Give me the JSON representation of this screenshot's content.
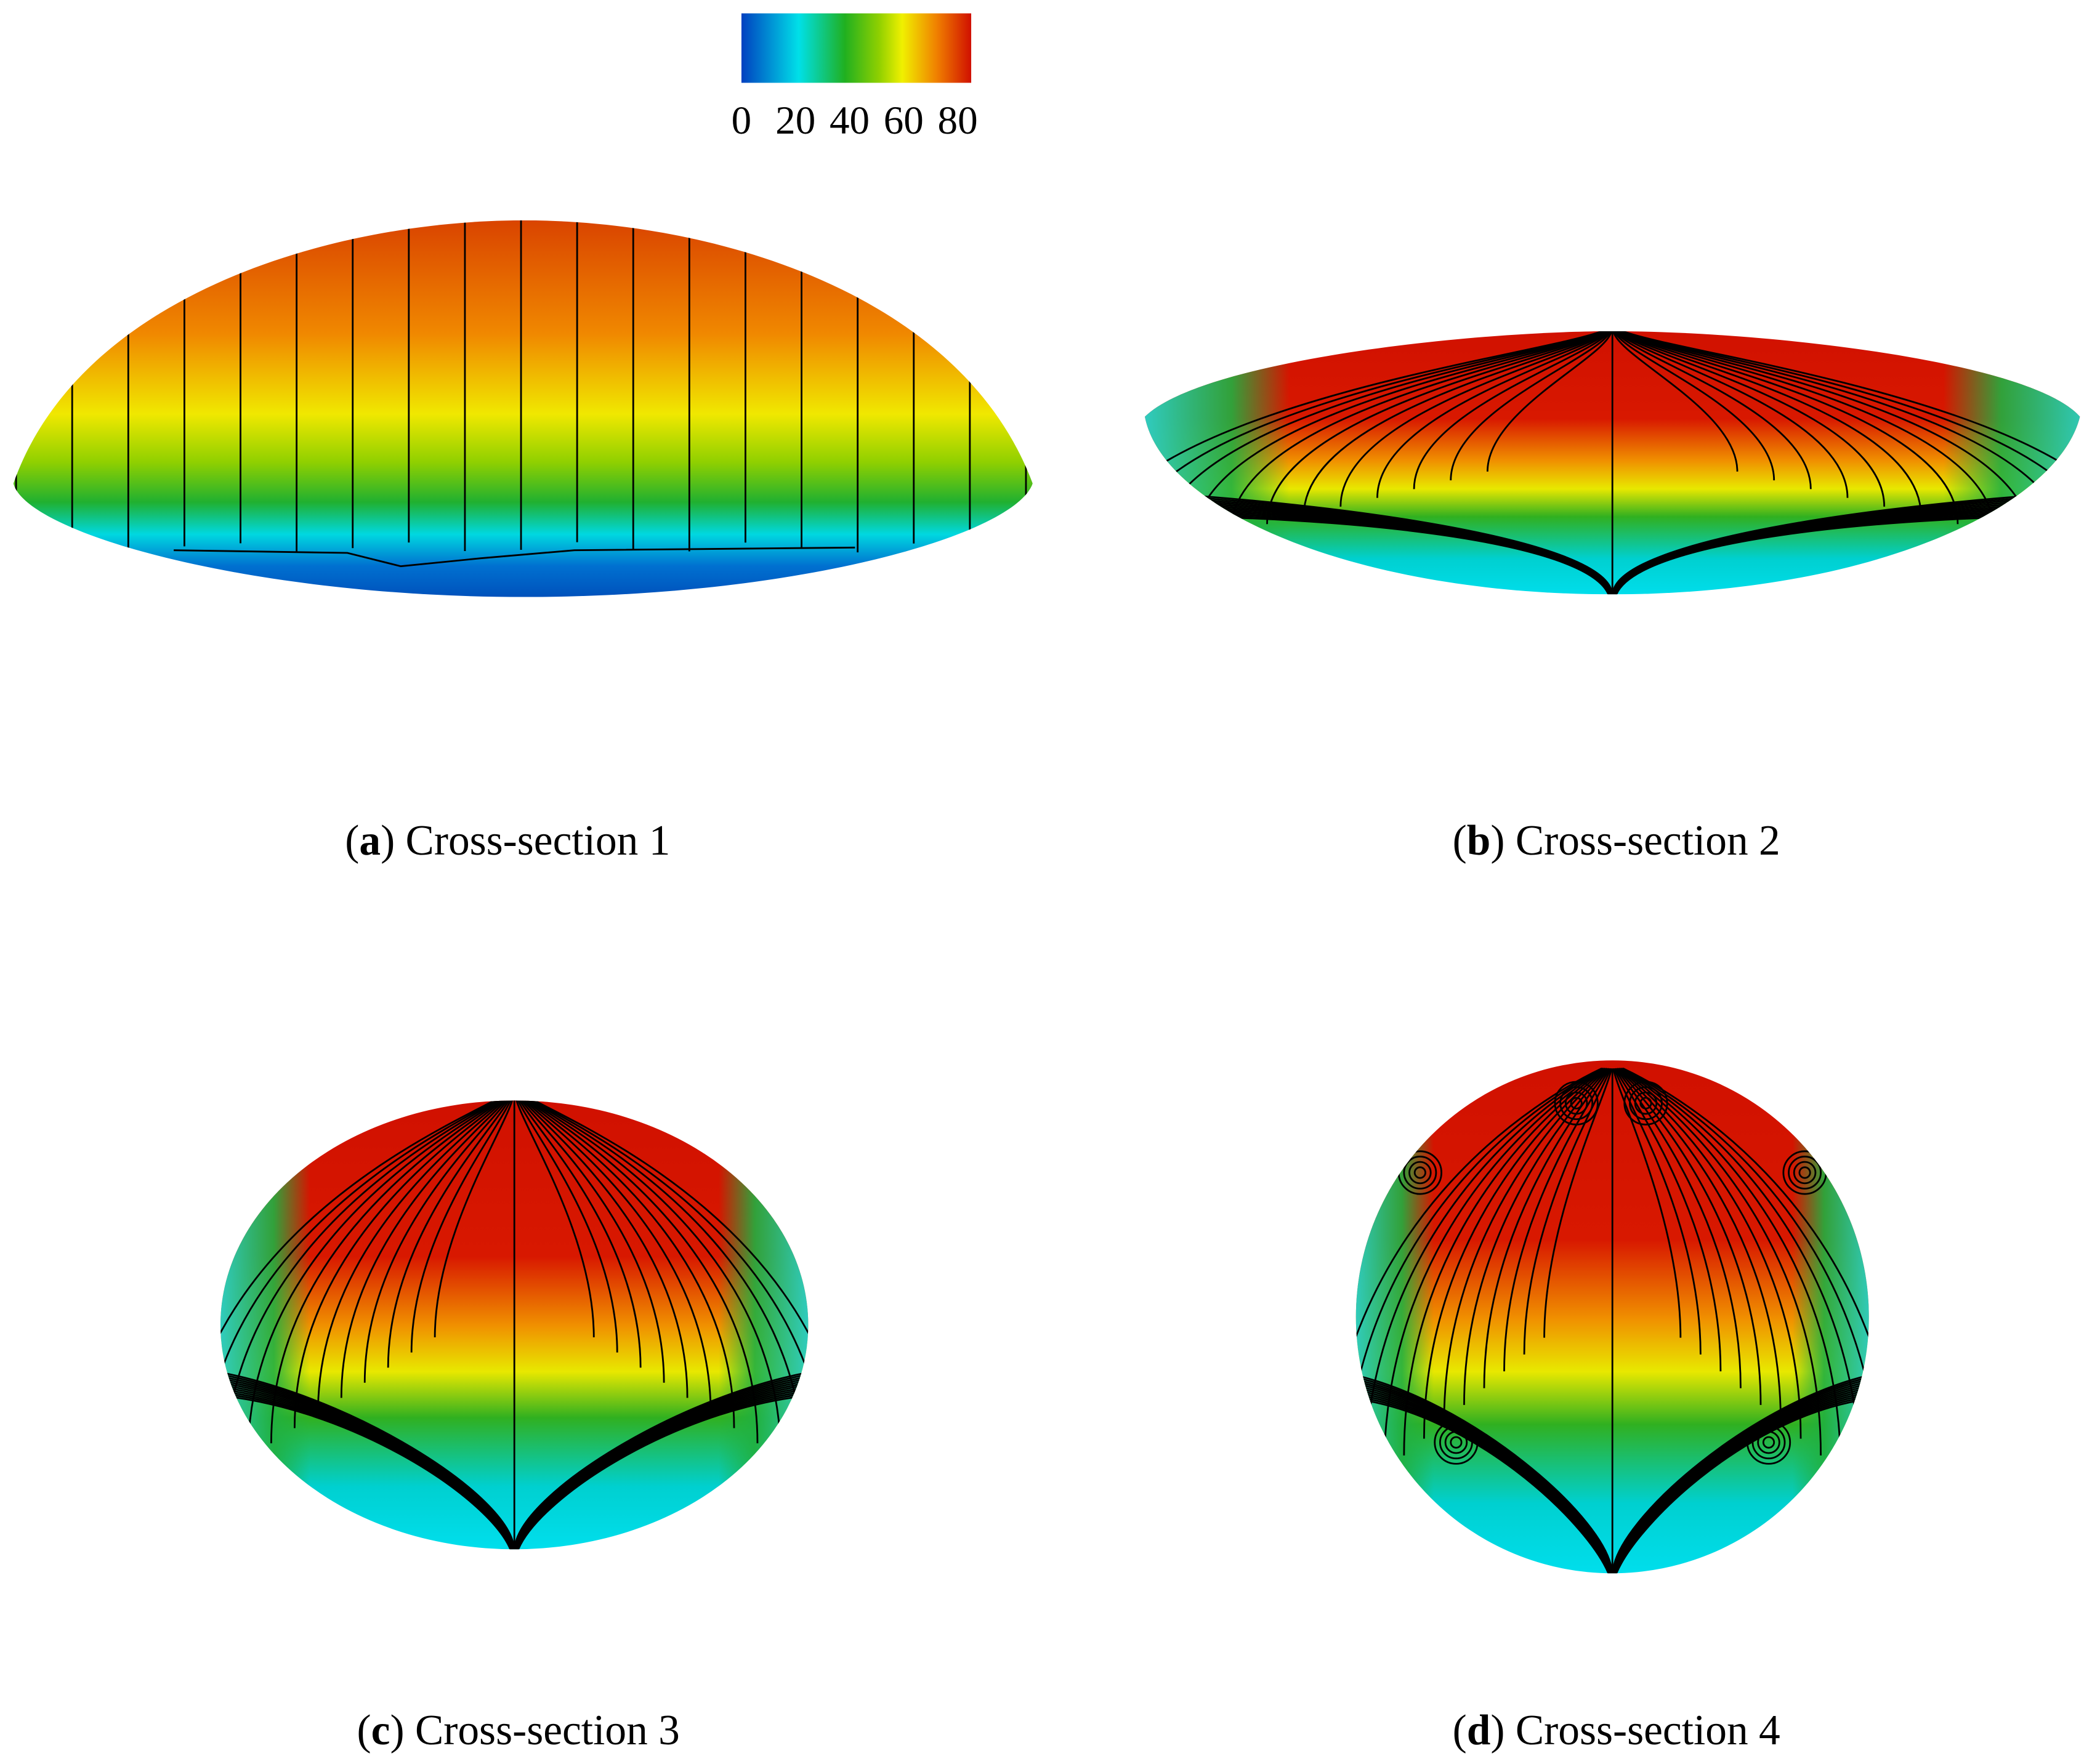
{
  "colorbar": {
    "clim": [
      0,
      85
    ],
    "ticks": [
      0,
      20,
      40,
      60,
      80
    ]
  },
  "panels": [
    {
      "prefix": "(",
      "label": "a",
      "text": ") Cross-section 1"
    },
    {
      "prefix": "(",
      "label": "b",
      "text": ") Cross-section 2"
    },
    {
      "prefix": "(",
      "label": "c",
      "text": ") Cross-section 3"
    },
    {
      "prefix": "(",
      "label": "d",
      "text": ") Cross-section 4"
    }
  ]
}
